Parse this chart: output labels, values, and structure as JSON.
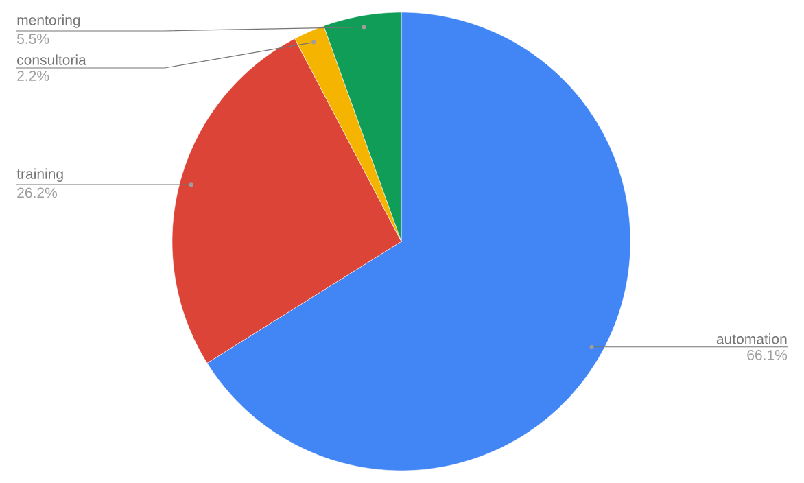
{
  "chart_data": {
    "type": "pie",
    "categories": [
      "automation",
      "training",
      "consultoria",
      "mentoring"
    ],
    "values": [
      66.1,
      26.2,
      2.2,
      5.5
    ],
    "value_labels": [
      "66.1%",
      "26.2%",
      "2.2%",
      "5.5%"
    ],
    "colors": [
      "#4285f4",
      "#db4437",
      "#f4b400",
      "#0f9d58"
    ]
  }
}
